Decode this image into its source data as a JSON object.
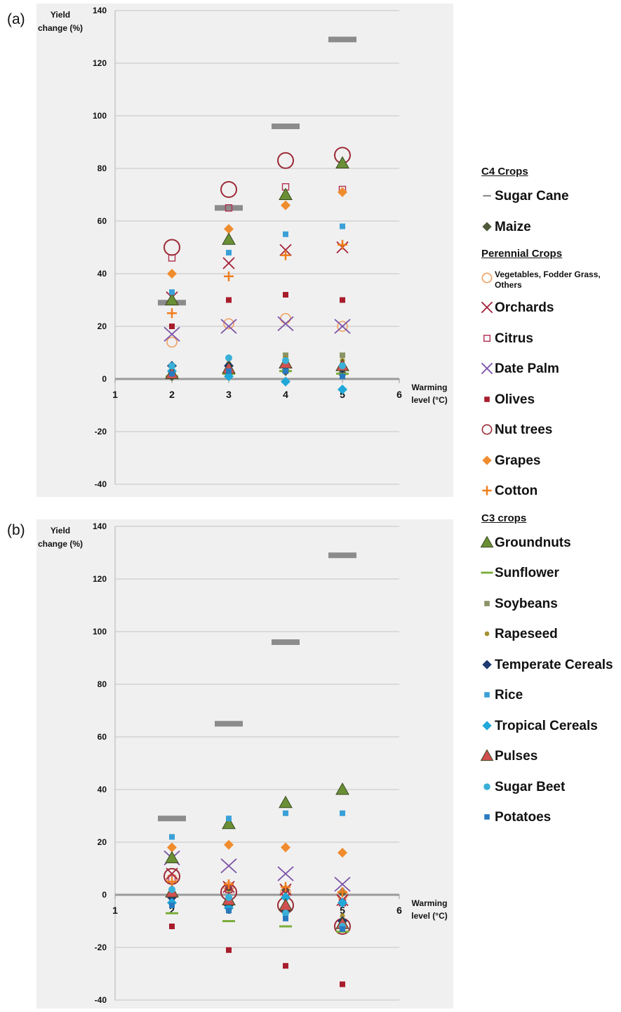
{
  "panels": [
    {
      "label": "(a)",
      "ylabel_line1": "Yield",
      "ylabel_line2": "change (%)",
      "xlabel_line1": "Warming",
      "xlabel_line2": "level (°C)"
    },
    {
      "label": "(b)",
      "ylabel_line1": "Yield",
      "ylabel_line2": "change (%)",
      "xlabel_line1": "Warming",
      "xlabel_line2": "level (°C)"
    }
  ],
  "legend": {
    "groups": [
      {
        "title": "C4 Crops",
        "items": [
          "Sugar Cane",
          "Maize"
        ]
      },
      {
        "title": "Perennial Crops",
        "items": [
          "Vegetables, Fodder Grass, Others",
          "Orchards",
          "Citrus",
          "Date Palm",
          "Olives",
          "Nut trees",
          "Grapes",
          "Cotton"
        ]
      },
      {
        "title": "C3 crops",
        "items": [
          "Groundnuts",
          "Sunflower",
          "Soybeans",
          "Rapeseed",
          "Temperate Cereals",
          "Rice",
          "Tropical Cereals",
          "Pulses",
          "Sugar Beet",
          "Potatoes"
        ]
      }
    ]
  },
  "chart_data": [
    {
      "type": "scatter",
      "panel": "(a)",
      "xlabel": "Warming level (°C)",
      "ylabel": "Yield change (%)",
      "xlim": [
        1,
        6
      ],
      "ylim": [
        -40,
        140
      ],
      "x_ticks": [
        1,
        2,
        3,
        4,
        5,
        6
      ],
      "y_ticks": [
        -40,
        -20,
        0,
        20,
        40,
        60,
        80,
        100,
        120,
        140
      ],
      "x": [
        2,
        3,
        4,
        5
      ],
      "series": [
        {
          "name": "Sugar Cane",
          "marker": "dash",
          "color": "#8c8c8c",
          "values": [
            29,
            65,
            96,
            129
          ]
        },
        {
          "name": "Maize",
          "marker": "diamond",
          "color": "#4e5a3a",
          "values": [
            1,
            3,
            3,
            2
          ]
        },
        {
          "name": "Vegetables, Fodder Grass, Others",
          "marker": "circle-open",
          "color": "#f0a060",
          "values": [
            14,
            21,
            23,
            20
          ]
        },
        {
          "name": "Orchards",
          "marker": "x",
          "color": "#a4213a",
          "values": [
            31,
            44,
            49,
            50
          ]
        },
        {
          "name": "Citrus",
          "marker": "square-open",
          "color": "#b03050",
          "values": [
            46,
            65,
            73,
            72
          ]
        },
        {
          "name": "Date Palm",
          "marker": "x-large",
          "color": "#7a50a8",
          "values": [
            17,
            20,
            21,
            20
          ]
        },
        {
          "name": "Olives",
          "marker": "square",
          "color": "#a81c2c",
          "values": [
            20,
            30,
            32,
            30
          ]
        },
        {
          "name": "Nut trees",
          "marker": "circle-open-large",
          "color": "#9b2a35",
          "values": [
            50,
            72,
            83,
            85
          ]
        },
        {
          "name": "Grapes",
          "marker": "diamond",
          "color": "#f08c2e",
          "values": [
            40,
            57,
            66,
            71
          ]
        },
        {
          "name": "Cotton",
          "marker": "plus",
          "color": "#f07e1e",
          "values": [
            25,
            39,
            47,
            51
          ]
        },
        {
          "name": "Groundnuts",
          "marker": "triangle",
          "color": "#6a8f35",
          "values": [
            30,
            53,
            70,
            82
          ]
        },
        {
          "name": "Sunflower",
          "marker": "dash-small",
          "color": "#7cad3c",
          "values": [
            1,
            2,
            3,
            2
          ]
        },
        {
          "name": "Soybeans",
          "marker": "square",
          "color": "#8a9466",
          "values": [
            2,
            5,
            9,
            9
          ]
        },
        {
          "name": "Rapeseed",
          "marker": "dot",
          "color": "#a89030",
          "values": [
            3,
            6,
            8,
            7
          ]
        },
        {
          "name": "Temperate Cereals",
          "marker": "diamond",
          "color": "#1f3a70",
          "values": [
            5,
            5,
            5,
            4
          ]
        },
        {
          "name": "Rice",
          "marker": "square",
          "color": "#3aa0d8",
          "values": [
            33,
            48,
            55,
            58
          ]
        },
        {
          "name": "Tropical Cereals",
          "marker": "diamond",
          "color": "#20a8d8",
          "values": [
            3,
            1,
            -1,
            -4
          ]
        },
        {
          "name": "Pulses",
          "marker": "triangle",
          "color": "#d05050",
          "values": [
            2,
            4,
            6,
            5
          ]
        },
        {
          "name": "Sugar Beet",
          "marker": "circle",
          "color": "#3ab0d8",
          "values": [
            5,
            8,
            7,
            5
          ]
        },
        {
          "name": "Potatoes",
          "marker": "square",
          "color": "#2a7ac0",
          "values": [
            2,
            3,
            3,
            1
          ]
        }
      ]
    },
    {
      "type": "scatter",
      "panel": "(b)",
      "xlabel": "Warming level (°C)",
      "ylabel": "Yield change (%)",
      "xlim": [
        1,
        6
      ],
      "ylim": [
        -40,
        140
      ],
      "x_ticks": [
        1,
        2,
        3,
        4,
        5,
        6
      ],
      "y_ticks": [
        -40,
        -20,
        0,
        20,
        40,
        60,
        80,
        100,
        120,
        140
      ],
      "x": [
        2,
        3,
        4,
        5
      ],
      "series": [
        {
          "name": "Sugar Cane",
          "marker": "dash",
          "color": "#8c8c8c",
          "values": [
            29,
            65,
            96,
            129
          ]
        },
        {
          "name": "Maize",
          "marker": "diamond",
          "color": "#4e5a3a",
          "values": [
            0,
            2,
            2,
            1
          ]
        },
        {
          "name": "Vegetables, Fodder Grass, Others",
          "marker": "circle-open",
          "color": "#f0a060",
          "values": [
            6,
            3,
            1,
            0
          ]
        },
        {
          "name": "Orchards",
          "marker": "x",
          "color": "#a4213a",
          "values": [
            8,
            3,
            2,
            -2
          ]
        },
        {
          "name": "Citrus",
          "marker": "square-open",
          "color": "#b03050",
          "values": [
            6,
            2,
            0,
            -3
          ]
        },
        {
          "name": "Date Palm",
          "marker": "x-large",
          "color": "#7a50a8",
          "values": [
            14,
            11,
            8,
            4
          ]
        },
        {
          "name": "Olives",
          "marker": "square",
          "color": "#a81c2c",
          "values": [
            -12,
            -21,
            -27,
            -34
          ]
        },
        {
          "name": "Nut trees",
          "marker": "circle-open-large",
          "color": "#9b2a35",
          "values": [
            7,
            1,
            -4,
            -12
          ]
        },
        {
          "name": "Grapes",
          "marker": "diamond",
          "color": "#f08c2e",
          "values": [
            18,
            19,
            18,
            16
          ]
        },
        {
          "name": "Cotton",
          "marker": "plus",
          "color": "#f07e1e",
          "values": [
            5,
            4,
            3,
            1
          ]
        },
        {
          "name": "Groundnuts",
          "marker": "triangle",
          "color": "#6a8f35",
          "values": [
            14,
            27,
            35,
            40
          ]
        },
        {
          "name": "Sunflower",
          "marker": "dash-small",
          "color": "#7cad3c",
          "values": [
            -7,
            -10,
            -12,
            -14
          ]
        },
        {
          "name": "Soybeans",
          "marker": "square",
          "color": "#8a9466",
          "values": [
            -2,
            -4,
            -6,
            -10
          ]
        },
        {
          "name": "Rapeseed",
          "marker": "dot",
          "color": "#a89030",
          "values": [
            -1,
            -3,
            -5,
            -8
          ]
        },
        {
          "name": "Temperate Cereals",
          "marker": "diamond",
          "color": "#1f3a70",
          "values": [
            -1,
            -4,
            -6,
            -10
          ]
        },
        {
          "name": "Rice",
          "marker": "square",
          "color": "#3aa0d8",
          "values": [
            22,
            29,
            31,
            31
          ]
        },
        {
          "name": "Tropical Cereals",
          "marker": "diamond",
          "color": "#20a8d8",
          "values": [
            -3,
            -5,
            -1,
            -3
          ]
        },
        {
          "name": "Pulses",
          "marker": "triangle",
          "color": "#d05050",
          "values": [
            1,
            -2,
            -4,
            -11
          ]
        },
        {
          "name": "Sugar Beet",
          "marker": "circle",
          "color": "#3ab0d8",
          "values": [
            2,
            -1,
            -7,
            -12
          ]
        },
        {
          "name": "Potatoes",
          "marker": "square",
          "color": "#2a7ac0",
          "values": [
            -4,
            -6,
            -9,
            -13
          ]
        }
      ]
    }
  ]
}
